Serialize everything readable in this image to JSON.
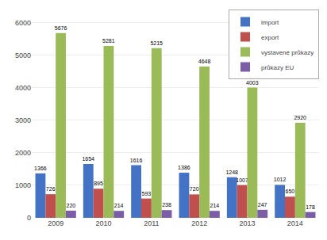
{
  "chart_data": {
    "type": "bar",
    "categories": [
      "2009",
      "2010",
      "2011",
      "2012",
      "2013",
      "2014"
    ],
    "series": [
      {
        "name": "import",
        "color": "#4472c4",
        "values": [
          1366,
          1654,
          1616,
          1386,
          1248,
          1012
        ]
      },
      {
        "name": "export",
        "color": "#c0504d",
        "values": [
          726,
          895,
          593,
          720,
          1007,
          650
        ]
      },
      {
        "name": "vystavené průkazy",
        "color": "#9bbb59",
        "values": [
          5676,
          5281,
          5215,
          4648,
          4003,
          2920
        ]
      },
      {
        "name": "průkazy EU",
        "color": "#7b5ea7",
        "values": [
          220,
          214,
          238,
          214,
          247,
          178
        ]
      }
    ],
    "ylim": [
      0,
      6400
    ],
    "yticks": [
      0,
      1000,
      2000,
      3000,
      4000,
      5000,
      6000
    ],
    "grid": true,
    "legend": "upper right",
    "data_labels": true
  }
}
